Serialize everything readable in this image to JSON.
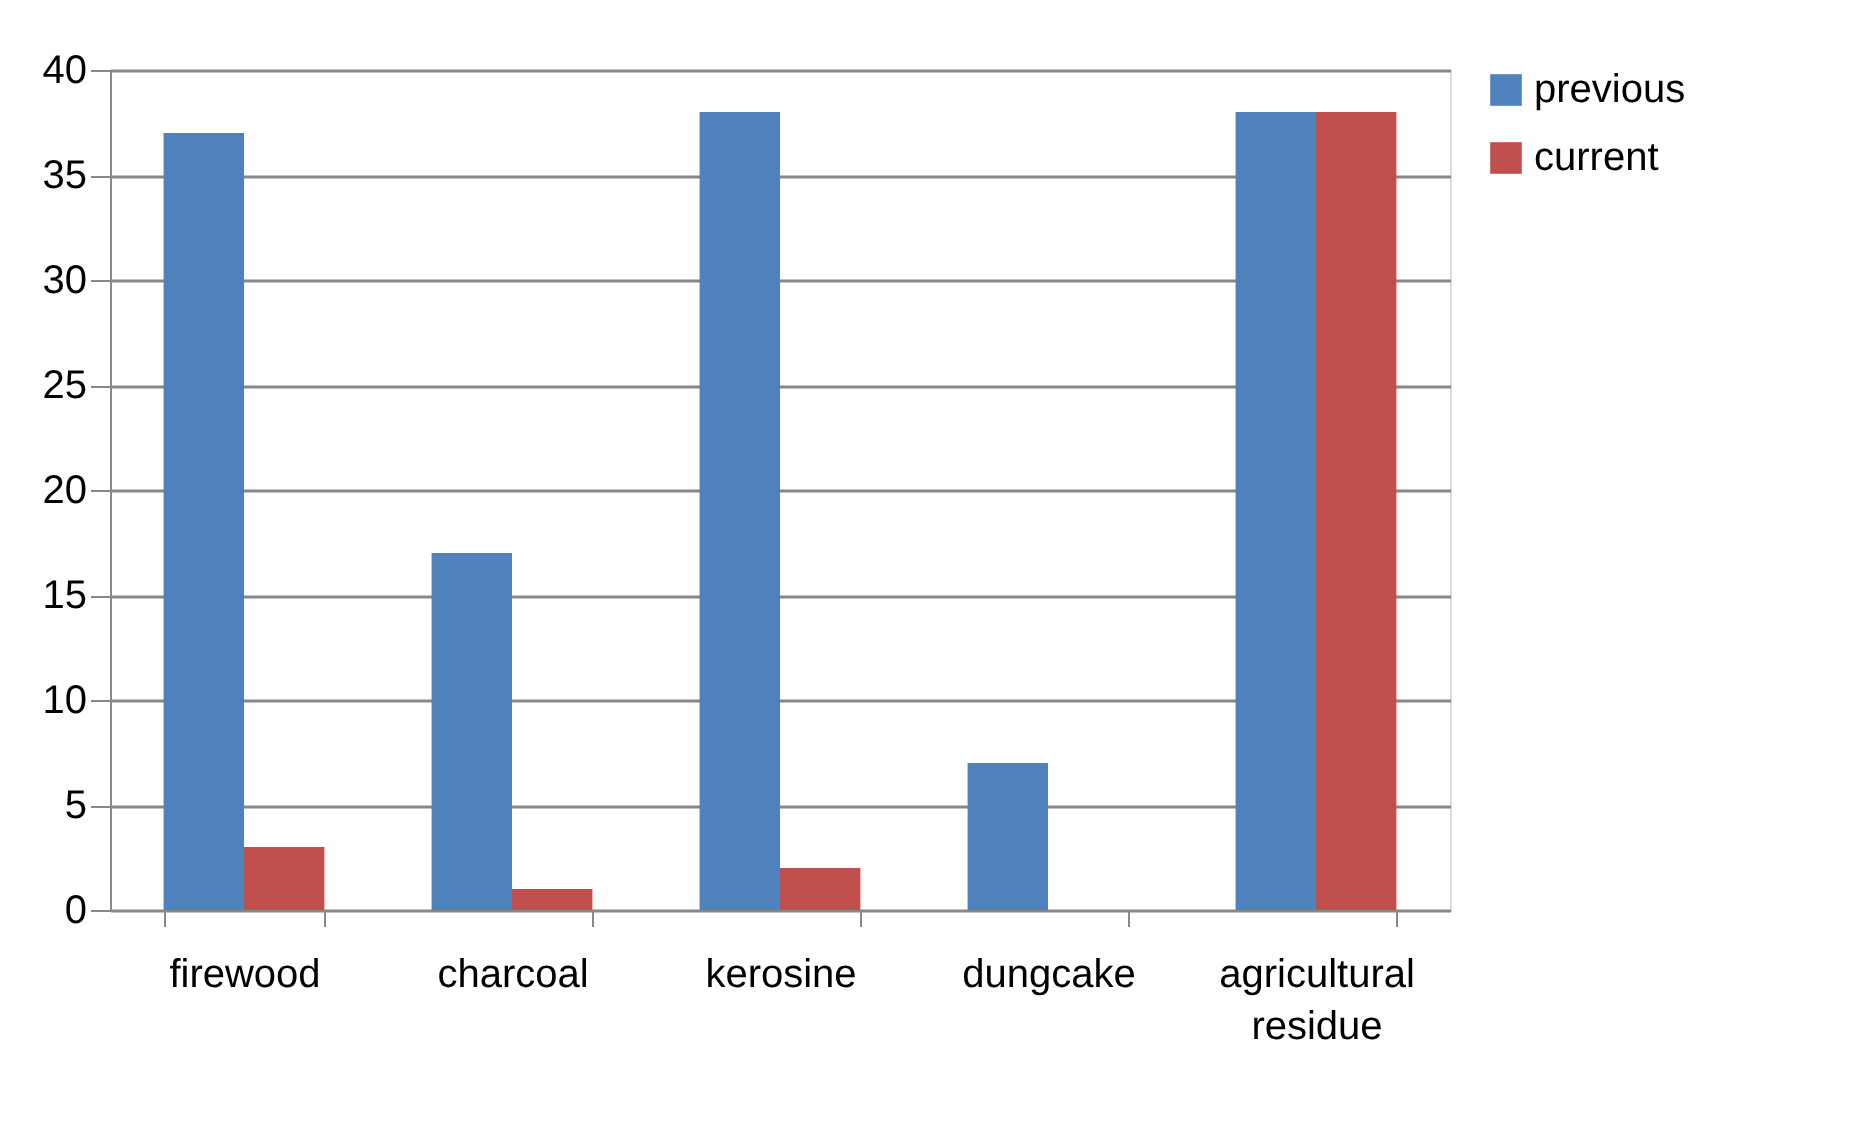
{
  "chart_data": {
    "type": "bar",
    "categories": [
      "firewood",
      "charcoal",
      "kerosine",
      "dungcake",
      "agricultural residue"
    ],
    "series": [
      {
        "name": "previous",
        "color": "#4f81bd",
        "values": [
          37,
          17,
          38,
          7,
          38
        ]
      },
      {
        "name": "current",
        "color": "#c0504d",
        "values": [
          3,
          1,
          2,
          0,
          38
        ]
      }
    ],
    "ylim": [
      0,
      40
    ],
    "yticks": [
      0,
      5,
      10,
      15,
      20,
      25,
      30,
      35,
      40
    ],
    "grid": "y",
    "legend": "right"
  }
}
